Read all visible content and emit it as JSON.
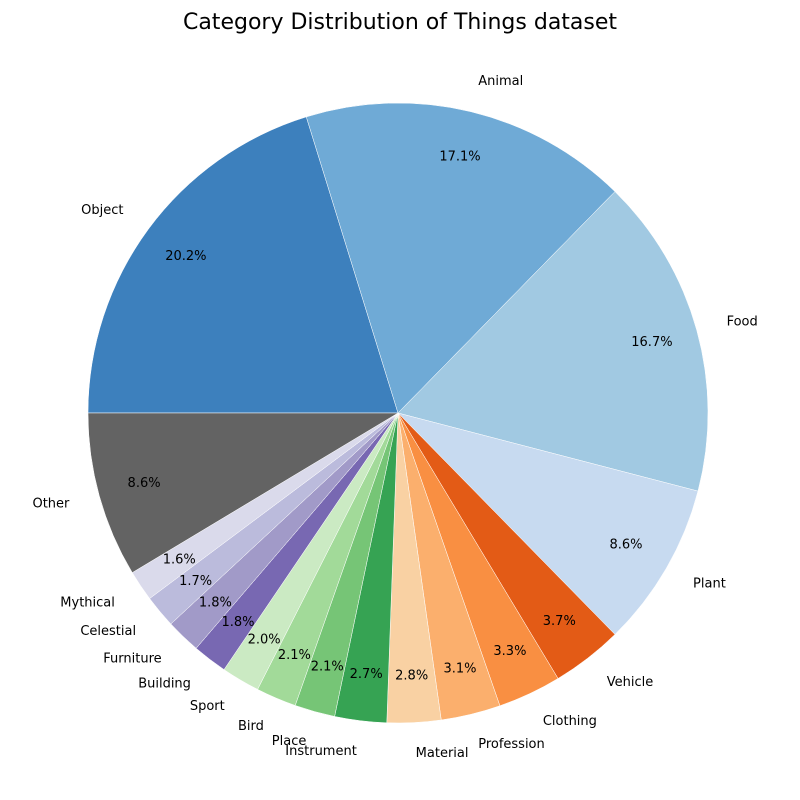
{
  "chart_data": {
    "type": "pie",
    "title": "Category Distribution of Things dataset",
    "start_angle_deg": 180,
    "direction": "clockwise",
    "slices": [
      {
        "label": "Object",
        "value": 20.2,
        "pct_text": "20.2%",
        "color": "#3d80bd"
      },
      {
        "label": "Animal",
        "value": 17.1,
        "pct_text": "17.1%",
        "color": "#6faad6"
      },
      {
        "label": "Food",
        "value": 16.7,
        "pct_text": "16.7%",
        "color": "#a1c9e2"
      },
      {
        "label": "Plant",
        "value": 8.6,
        "pct_text": "8.6%",
        "color": "#c7daf0"
      },
      {
        "label": "Vehicle",
        "value": 3.7,
        "pct_text": "3.7%",
        "color": "#e35b16"
      },
      {
        "label": "Clothing",
        "value": 3.3,
        "pct_text": "3.3%",
        "color": "#f98f42"
      },
      {
        "label": "Profession",
        "value": 3.1,
        "pct_text": "3.1%",
        "color": "#fbaf6d"
      },
      {
        "label": "Material",
        "value": 2.8,
        "pct_text": "2.8%",
        "color": "#f9d1a3"
      },
      {
        "label": "Instrument",
        "value": 2.7,
        "pct_text": "2.7%",
        "color": "#36a353"
      },
      {
        "label": "Place",
        "value": 2.1,
        "pct_text": "2.1%",
        "color": "#76c576"
      },
      {
        "label": "Bird",
        "value": 2.1,
        "pct_text": "2.1%",
        "color": "#a2da99"
      },
      {
        "label": "Sport",
        "value": 2.0,
        "pct_text": "2.0%",
        "color": "#cbeac3"
      },
      {
        "label": "Building",
        "value": 1.8,
        "pct_text": "1.8%",
        "color": "#7868b2"
      },
      {
        "label": "Furniture",
        "value": 1.8,
        "pct_text": "1.8%",
        "color": "#a19ac8"
      },
      {
        "label": "Celestial",
        "value": 1.7,
        "pct_text": "1.7%",
        "color": "#bbbbdc"
      },
      {
        "label": "Mythical",
        "value": 1.6,
        "pct_text": "1.6%",
        "color": "#dadaeb"
      },
      {
        "label": "Other",
        "value": 8.6,
        "pct_text": "8.6%",
        "color": "#636363"
      }
    ]
  }
}
